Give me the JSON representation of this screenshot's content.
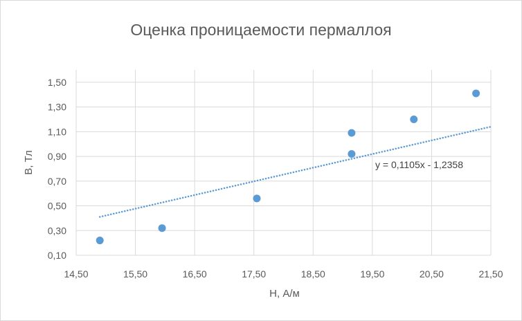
{
  "chart_data": {
    "type": "scatter",
    "title": "Оценка проницаемости пермаллоя",
    "xlabel": "H, А/м",
    "ylabel": "B, Тл",
    "xlim": [
      14.5,
      21.5
    ],
    "ylim": [
      0.1,
      1.6
    ],
    "x_ticks": [
      "14,50",
      "15,50",
      "16,50",
      "17,50",
      "18,50",
      "19,50",
      "20,50",
      "21,50"
    ],
    "y_ticks": [
      "0,10",
      "0,30",
      "0,50",
      "0,70",
      "0,90",
      "1,10",
      "1,30",
      "1,50"
    ],
    "grid": true,
    "points": [
      {
        "x": 14.9,
        "y": 0.22
      },
      {
        "x": 15.95,
        "y": 0.32
      },
      {
        "x": 17.55,
        "y": 0.56
      },
      {
        "x": 19.15,
        "y": 0.92
      },
      {
        "x": 19.15,
        "y": 1.09
      },
      {
        "x": 20.2,
        "y": 1.2
      },
      {
        "x": 21.25,
        "y": 1.41
      }
    ],
    "trendline": {
      "type": "linear",
      "slope": 0.1105,
      "intercept": -1.2358,
      "x_start": 14.9,
      "x_end": 21.5,
      "style": "dotted",
      "equation_label": "y = 0,1105x - 1,2358"
    },
    "colors": {
      "points": "#5b9bd5",
      "trendline": "#5b9bd5",
      "grid": "#d9d9d9",
      "text": "#595959"
    }
  }
}
